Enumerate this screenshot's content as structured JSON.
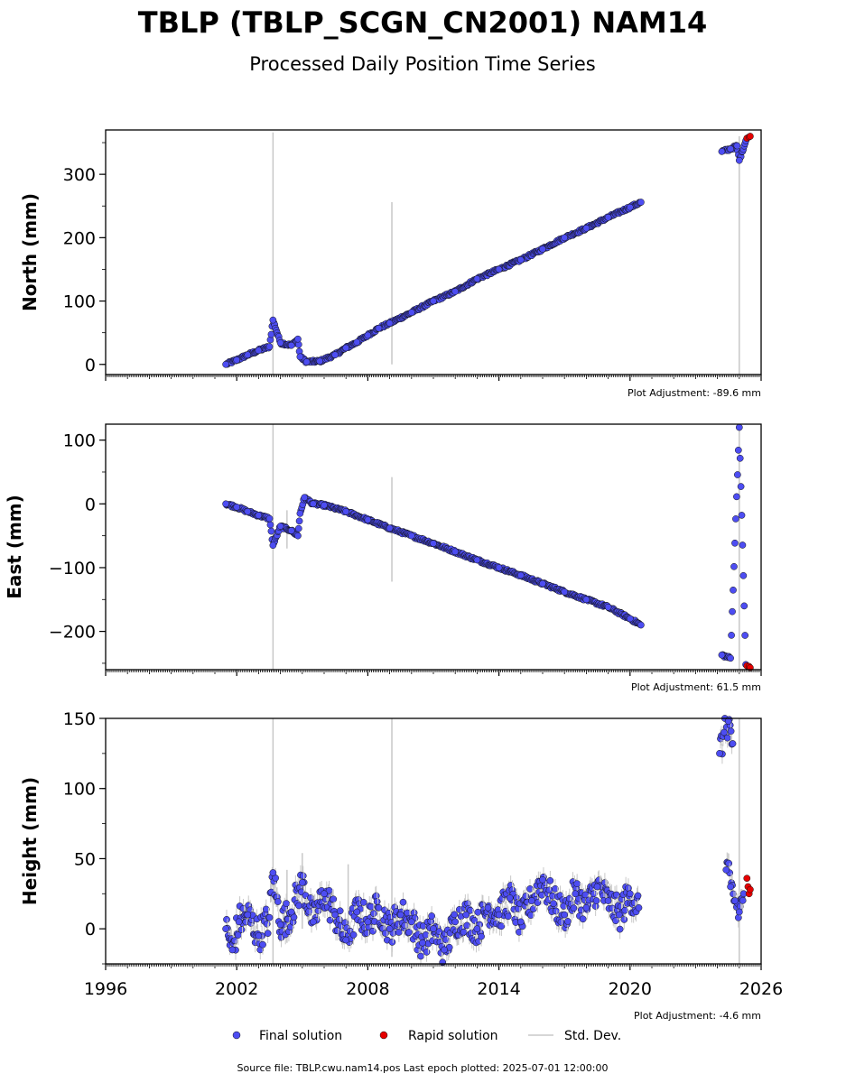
{
  "title": "TBLP (TBLP_SCGN_CN2001) NAM14",
  "subtitle": "Processed Daily Position Time Series",
  "legend": {
    "final": "Final solution",
    "rapid": "Rapid solution",
    "stddev": "Std. Dev."
  },
  "footer": "Source file: TBLP.cwu.nam14.pos  Last epoch plotted: 2025-07-01 12:00:00",
  "colors": {
    "final": "#4d4df2",
    "rapid": "#e60000",
    "stddev": "#c8c8c8",
    "edge": "#111111"
  },
  "chart_data": [
    {
      "type": "scatter",
      "panel": "north",
      "ylabel": "North (mm)",
      "adjustment": "Plot Adjustment: -89.6 mm",
      "xlim": [
        1996,
        2026
      ],
      "ylim": [
        -16,
        370
      ],
      "yticks": [
        0,
        100,
        200,
        300
      ],
      "ytick_labels": [
        "0",
        "100",
        "200",
        "300"
      ],
      "series": [
        {
          "name": "Final solution",
          "x": [
            2001.5,
            2002.0,
            2002.5,
            2003.0,
            2003.5,
            2003.66,
            2004.0,
            2004.5,
            2004.8,
            2004.9,
            2005.2,
            2005.8,
            2006.5,
            2007.0,
            2007.5,
            2008.0,
            2008.5,
            2009.0,
            2010.0,
            2011.0,
            2012.0,
            2013.0,
            2014.0,
            2015.0,
            2016.0,
            2017.0,
            2018.0,
            2019.0,
            2020.0,
            2020.5,
            2024.2,
            2024.6,
            2024.9,
            2025.0,
            2025.3
          ],
          "y": [
            0,
            7,
            15,
            22,
            28,
            70,
            34,
            30,
            40,
            12,
            4,
            5,
            15,
            26,
            35,
            46,
            57,
            65,
            82,
            100,
            115,
            135,
            150,
            165,
            182,
            200,
            215,
            232,
            248,
            256,
            336,
            340,
            345,
            322,
            353
          ]
        },
        {
          "name": "Rapid solution",
          "x": [
            2025.35,
            2025.45,
            2025.5
          ],
          "y": [
            357,
            359,
            360
          ]
        }
      ],
      "stddev_bars": [
        {
          "x": 2003.66,
          "y0": -16,
          "y1": 366
        },
        {
          "x": 2009.1,
          "y0": 0,
          "y1": 256
        },
        {
          "x": 2025.0,
          "y0": -16,
          "y1": 360
        }
      ]
    },
    {
      "type": "scatter",
      "panel": "east",
      "ylabel": "East (mm)",
      "adjustment": "Plot Adjustment: 61.5 mm",
      "xlim": [
        1996,
        2026
      ],
      "ylim": [
        -260,
        125
      ],
      "yticks": [
        -200,
        -100,
        0,
        100
      ],
      "ytick_labels": [
        "−200",
        "−100",
        "0",
        "100"
      ],
      "series": [
        {
          "name": "Final solution",
          "x": [
            2001.5,
            2002.0,
            2002.5,
            2003.0,
            2003.5,
            2003.66,
            2004.0,
            2004.5,
            2004.8,
            2004.9,
            2005.1,
            2005.5,
            2006.0,
            2007.0,
            2008.0,
            2009.0,
            2010.0,
            2011.0,
            2012.0,
            2013.0,
            2014.0,
            2015.0,
            2016.0,
            2017.0,
            2018.0,
            2019.0,
            2020.0,
            2020.5,
            2024.2,
            2024.6,
            2025.0,
            2025.3
          ],
          "y": [
            0,
            -5,
            -12,
            -18,
            -23,
            -65,
            -35,
            -42,
            -50,
            -15,
            10,
            0,
            -2,
            -12,
            -25,
            -38,
            -50,
            -62,
            -75,
            -88,
            -100,
            -112,
            -125,
            -138,
            -150,
            -162,
            -180,
            -190,
            -237,
            -242,
            120,
            -252
          ]
        },
        {
          "name": "Rapid solution",
          "x": [
            2025.35,
            2025.45,
            2025.5
          ],
          "y": [
            -254,
            -255,
            -257
          ]
        }
      ],
      "stddev_bars": [
        {
          "x": 2003.66,
          "y0": -260,
          "y1": 125
        },
        {
          "x": 2004.3,
          "y0": -70,
          "y1": -10
        },
        {
          "x": 2009.1,
          "y0": -122,
          "y1": 42
        },
        {
          "x": 2025.0,
          "y0": -260,
          "y1": 125
        }
      ]
    },
    {
      "type": "scatter",
      "panel": "height",
      "ylabel": "Height (mm)",
      "adjustment": "Plot Adjustment: -4.6 mm",
      "xlim": [
        1996,
        2026
      ],
      "xticks": [
        1996,
        2002,
        2008,
        2014,
        2020,
        2026
      ],
      "xtick_labels": [
        "1996",
        "2002",
        "2008",
        "2014",
        "2020",
        "2026"
      ],
      "ylim": [
        -25,
        150
      ],
      "yticks": [
        0,
        50,
        100,
        150
      ],
      "ytick_labels": [
        "0",
        "50",
        "100",
        "150"
      ],
      "series": [
        {
          "name": "Final solution",
          "x": [
            2001.5,
            2001.8,
            2002.1,
            2002.5,
            2003.0,
            2003.5,
            2003.66,
            2004.0,
            2004.5,
            2005.0,
            2005.5,
            2006.0,
            2006.5,
            2007.0,
            2007.5,
            2008.0,
            2008.5,
            2009.0,
            2009.5,
            2010.0,
            2010.5,
            2011.0,
            2011.5,
            2012.0,
            2012.5,
            2013.0,
            2013.5,
            2014.0,
            2014.5,
            2015.0,
            2015.5,
            2016.0,
            2016.5,
            2017.0,
            2017.5,
            2018.0,
            2018.5,
            2019.0,
            2019.5,
            2020.0,
            2020.4,
            2024.1,
            2024.3,
            2024.5,
            2024.7,
            2024.4,
            2024.6,
            2024.8,
            2025.0,
            2025.2
          ],
          "y": [
            0,
            -15,
            5,
            10,
            -5,
            8,
            40,
            3,
            12,
            33,
            5,
            25,
            10,
            -8,
            12,
            5,
            15,
            0,
            10,
            5,
            -10,
            0,
            -15,
            5,
            10,
            0,
            15,
            10,
            22,
            5,
            20,
            35,
            18,
            10,
            25,
            15,
            30,
            20,
            10,
            25,
            15,
            125,
            140,
            148,
            132,
            42,
            30,
            20,
            12,
            25
          ],
          "err": [
            8,
            10,
            8,
            8,
            8,
            8,
            6,
            8,
            8,
            8,
            8,
            8,
            8,
            8,
            8,
            8,
            8,
            8,
            8,
            8,
            8,
            8,
            8,
            8,
            8,
            8,
            8,
            8,
            8,
            8,
            8,
            8,
            8,
            8,
            8,
            8,
            8,
            8,
            8,
            8,
            8,
            8,
            8,
            8,
            8,
            8,
            8,
            8,
            8,
            8
          ]
        },
        {
          "name": "Rapid solution",
          "x": [
            2025.35,
            2025.4,
            2025.45,
            2025.5
          ],
          "y": [
            36,
            30,
            25,
            28
          ]
        }
      ],
      "stddev_bars": [
        {
          "x": 2003.66,
          "y0": -25,
          "y1": 150
        },
        {
          "x": 2004.3,
          "y0": -10,
          "y1": 42
        },
        {
          "x": 2005.0,
          "y0": 0,
          "y1": 54
        },
        {
          "x": 2007.1,
          "y0": -5,
          "y1": 46
        },
        {
          "x": 2009.1,
          "y0": -20,
          "y1": 150
        },
        {
          "x": 2025.0,
          "y0": -25,
          "y1": 150
        }
      ]
    }
  ]
}
